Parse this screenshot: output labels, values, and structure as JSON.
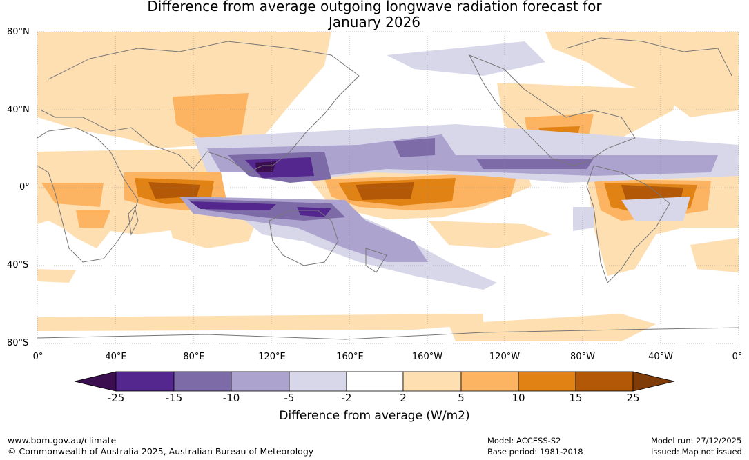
{
  "title": {
    "line1": "Difference from average outgoing longwave radiation forecast for",
    "line2": "January 2026"
  },
  "map": {
    "latitude_labels": [
      "80°N",
      "40°N",
      "0°",
      "40°S",
      "80°S"
    ],
    "longitude_labels": [
      "0°",
      "40°E",
      "80°E",
      "120°E",
      "160°E",
      "160°W",
      "120°W",
      "80°W",
      "40°W",
      "0°"
    ]
  },
  "colorbar": {
    "ticks": [
      "-25",
      "-15",
      "-10",
      "-5",
      "-2",
      "2",
      "5",
      "10",
      "15",
      "25"
    ],
    "colors": [
      "#3b0f4f",
      "#54278f",
      "#7d6ba8",
      "#ada3cf",
      "#d8d7e9",
      "#ffffff",
      "#fedfb2",
      "#fdb462",
      "#e08214",
      "#b35806",
      "#7f3b08"
    ],
    "title": "Difference from average (W/m2)"
  },
  "footer": {
    "website": "www.bom.gov.au/climate",
    "copyright": "© Commonwealth of Australia 2025, Australian Bureau of Meteorology",
    "model": "Model: ACCESS-S2",
    "base_period": "Base period: 1981-2018",
    "model_run": "Model run: 27/12/2025",
    "issued": "Issued: Map not issued"
  }
}
